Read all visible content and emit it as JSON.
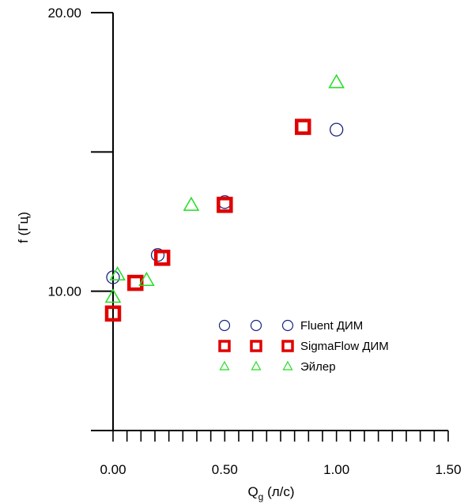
{
  "chart_data": {
    "type": "scatter",
    "xlabel": "Q",
    "xlabel_sub": "g",
    "xlabel_unit": " (л/с)",
    "ylabel": "f (Гц)",
    "xlim": [
      0,
      1.5
    ],
    "ylim": [
      5,
      20
    ],
    "x_tick_labels": [
      {
        "value": 0.0,
        "text": "0.00"
      },
      {
        "value": 0.5,
        "text": "0.50"
      },
      {
        "value": 1.0,
        "text": "1.00"
      },
      {
        "value": 1.5,
        "text": "1.50"
      }
    ],
    "y_tick_labels": [
      {
        "value": 10,
        "text": "10.00"
      },
      {
        "value": 20,
        "text": "20.00"
      }
    ],
    "x_minor_step": 0.0625,
    "y_major_step": 5,
    "grid": false,
    "legend_position": "right-center",
    "series": [
      {
        "name": "Fluent ДИМ",
        "marker": "circle",
        "color": "#1a237e",
        "points": [
          [
            0.0,
            10.5
          ],
          [
            0.2,
            11.3
          ],
          [
            0.5,
            13.2
          ],
          [
            1.0,
            15.8
          ]
        ]
      },
      {
        "name": "SigmaFlow ДИМ",
        "marker": "square",
        "color": "#e00000",
        "points": [
          [
            0.0,
            9.2
          ],
          [
            0.1,
            10.3
          ],
          [
            0.22,
            11.2
          ],
          [
            0.5,
            13.1
          ],
          [
            0.85,
            15.9
          ]
        ]
      },
      {
        "name": "Эйлер",
        "marker": "triangle",
        "color": "#22dd22",
        "points": [
          [
            0.0,
            9.8
          ],
          [
            0.02,
            10.6
          ],
          [
            0.15,
            10.4
          ],
          [
            0.35,
            13.1
          ],
          [
            1.0,
            17.5
          ]
        ]
      }
    ]
  }
}
